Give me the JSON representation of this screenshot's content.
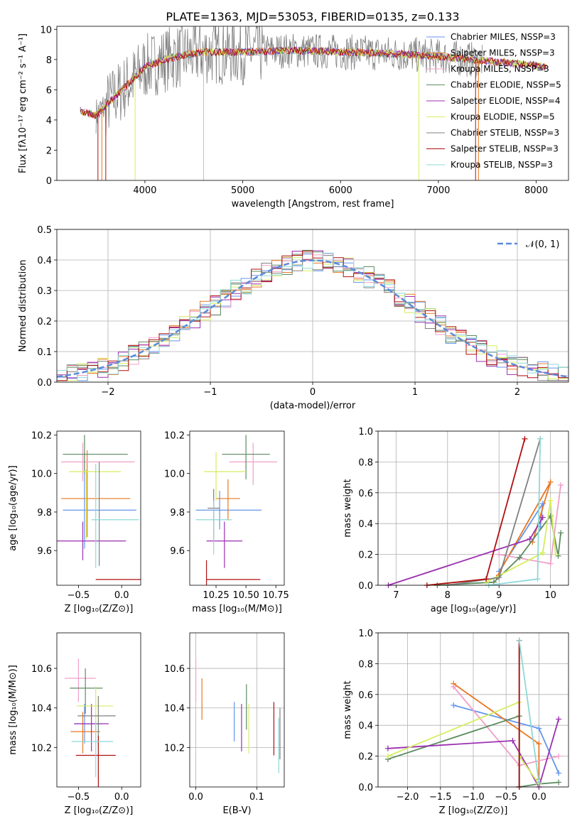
{
  "figure_title": "PLATE=1363, MJD=53053, FIBERID=0135, z=0.133",
  "colors": [
    "#6495ED",
    "#E87722",
    "#F0A0C8",
    "#5E8C61",
    "#9B30B0",
    "#D4EE5E",
    "#808080",
    "#B01010",
    "#8ED8D8"
  ],
  "chart_data": [
    {
      "id": "spectrum",
      "type": "line",
      "xlabel": "wavelength [Angstrom, rest frame]",
      "ylabel": "Flux [fλ10⁻¹⁷ erg cm⁻² s⁻¹ A⁻¹]",
      "xlim": [
        3100,
        8330
      ],
      "ylim": [
        0,
        10.2
      ],
      "xticks": [
        "4000",
        "5000",
        "6000",
        "7000",
        "8000"
      ],
      "yticks": [
        "0",
        "2",
        "4",
        "6",
        "8",
        "10"
      ],
      "legend_position": "right",
      "series": [
        {
          "name": "Chabrier MILES, N_SSP=3"
        },
        {
          "name": "Salpeter MILES, N_SSP=3"
        },
        {
          "name": "Kroupa MILES, N_SSP=3"
        },
        {
          "name": "Chabrier ELODIE, N_SSP=5"
        },
        {
          "name": "Salpeter ELODIE, N_SSP=4"
        },
        {
          "name": "Kroupa ELODIE, N_SSP=5"
        },
        {
          "name": "Chabrier STELIB, N_SSP=3"
        },
        {
          "name": "Salpeter STELIB, N_SSP=3"
        },
        {
          "name": "Kroupa STELIB, N_SSP=3"
        }
      ],
      "continuum": {
        "x": [
          3340,
          3500,
          3700,
          3900,
          4000,
          4200,
          4400,
          4600,
          5000,
          5500,
          6000,
          6500,
          7000,
          7500,
          8000,
          8100
        ],
        "y": [
          4.6,
          4.3,
          5.6,
          6.8,
          7.5,
          8.0,
          8.3,
          8.5,
          8.5,
          8.6,
          8.5,
          8.4,
          8.2,
          7.9,
          7.6,
          7.5
        ]
      }
    },
    {
      "id": "residuals",
      "type": "histogram",
      "xlabel": "(data-model)/error",
      "ylabel": "Normed distribution",
      "xlim": [
        -2.5,
        2.5
      ],
      "ylim": [
        0,
        0.5
      ],
      "xticks": [
        "−2",
        "−1",
        "0",
        "1",
        "2"
      ],
      "yticks": [
        "0.0",
        "0.1",
        "0.2",
        "0.3",
        "0.4",
        "0.5"
      ],
      "grid": true,
      "legend_position": "top-right",
      "reference_curve": {
        "name": "𝒩(0, 1)",
        "mean": 0,
        "sigma": 1
      }
    },
    {
      "id": "age_vs_Z",
      "type": "errorbar",
      "xlabel": "Z [log₁₀(Z/Z⊙)]",
      "ylabel": "age  [log₁₀(age/yr)]",
      "xticks": [
        "−0.5",
        "0.0"
      ],
      "yticks": [
        "9.6",
        "9.8",
        "10.0",
        "10.2"
      ],
      "points": [
        {
          "series": 0,
          "x": -0.43,
          "xerr": [
            0.25,
            0.6
          ],
          "y": 9.81,
          "yerr": [
            0.2,
            0.3
          ]
        },
        {
          "series": 1,
          "x": -0.4,
          "xerr": [
            0.3,
            0.5
          ],
          "y": 9.87,
          "yerr": [
            0.2,
            0.25
          ]
        },
        {
          "series": 2,
          "x": -0.45,
          "xerr": [
            0.25,
            0.6
          ],
          "y": 10.06,
          "yerr": [
            0.1,
            0.1
          ]
        },
        {
          "series": 3,
          "x": -0.43,
          "xerr": [
            0.25,
            0.5
          ],
          "y": 10.1,
          "yerr": [
            0.1,
            0.1
          ]
        },
        {
          "series": 4,
          "x": -0.45,
          "xerr": [
            0.45,
            0.5
          ],
          "y": 9.65,
          "yerr": [
            0.1,
            0.1
          ]
        },
        {
          "series": 5,
          "x": -0.41,
          "xerr": [
            0.2,
            0.4
          ],
          "y": 10.01,
          "yerr": [
            0.35,
            0.01
          ]
        },
        {
          "series": 6,
          "x": -0.26,
          "xerr": [
            0.0,
            0.0
          ],
          "y": 9.82,
          "yerr": [
            0.3,
            0.24
          ]
        },
        {
          "series": 7,
          "x": -0.25,
          "xerr": [
            0.05,
            0.47
          ],
          "y": 9.45,
          "yerr": [
            0.0,
            0.0
          ]
        },
        {
          "series": 8,
          "x": -0.3,
          "xerr": [
            0.05,
            0.5
          ],
          "y": 9.76,
          "yerr": [
            0.25,
            0.29
          ]
        }
      ]
    },
    {
      "id": "age_vs_mass",
      "type": "errorbar",
      "xlabel": "mass [log₁₀(M/M⊙)]",
      "xticks": [
        "10.25",
        "10.50",
        "10.75"
      ],
      "yticks": [
        "9.6",
        "9.8",
        "10.0",
        "10.2"
      ],
      "points": [
        {
          "series": 0,
          "x": 10.28,
          "xerr": [
            0.2,
            0.35
          ],
          "y": 9.81
        },
        {
          "series": 1,
          "x": 10.35,
          "xerr": [
            0.1,
            0.1
          ],
          "y": 9.87
        },
        {
          "series": 2,
          "x": 10.56,
          "xerr": [
            0.2,
            0.2
          ],
          "y": 10.06
        },
        {
          "series": 3,
          "x": 10.5,
          "xerr": [
            0.2,
            0.2
          ],
          "y": 10.1
        },
        {
          "series": 4,
          "x": 10.32,
          "xerr": [
            0.15,
            0.15
          ],
          "y": 9.65
        },
        {
          "series": 5,
          "x": 10.25,
          "xerr": [
            0.1,
            0.25
          ],
          "y": 10.01
        },
        {
          "series": 6,
          "x": 10.23,
          "xerr": [
            0.05,
            0.05
          ],
          "y": 9.82
        },
        {
          "series": 7,
          "x": 10.17,
          "xerr": [
            0.0,
            0.45
          ],
          "y": 9.45
        },
        {
          "series": 8,
          "x": 10.23,
          "xerr": [
            0.15,
            0.15
          ],
          "y": 9.76
        }
      ]
    },
    {
      "id": "mass_weight_vs_age",
      "type": "line",
      "xlabel": "age  [log₁₀(age/yr)]",
      "ylabel": "mass weight",
      "xlim": [
        6.65,
        10.35
      ],
      "ylim": [
        0,
        1.0
      ],
      "xticks": [
        "7",
        "8",
        "9",
        "10"
      ],
      "yticks": [
        "0.0",
        "0.2",
        "0.4",
        "0.6",
        "0.8",
        "1.0"
      ],
      "grid": true,
      "series": [
        {
          "x": [
            9.0,
            9.85,
            9.8
          ],
          "y": [
            0.09,
            0.53,
            0.38
          ]
        },
        {
          "x": [
            8.95,
            10.0,
            9.65
          ],
          "y": [
            0.05,
            0.67,
            0.28
          ]
        },
        {
          "x": [
            9.0,
            10.0,
            10.2
          ],
          "y": [
            0.2,
            0.14,
            0.65
          ]
        },
        {
          "x": [
            7.8,
            8.9,
            9.4,
            10.0,
            10.15,
            10.2
          ],
          "y": [
            0.0,
            0.02,
            0.18,
            0.45,
            0.19,
            0.34
          ]
        },
        {
          "x": [
            6.85,
            9.6,
            9.85
          ],
          "y": [
            0.0,
            0.3,
            0.44
          ]
        },
        {
          "x": [
            8.75,
            9.85,
            10.0,
            10.1
          ],
          "y": [
            0.02,
            0.21,
            0.55,
            0.2
          ]
        },
        {
          "x": [
            8.0,
            9.0,
            9.8
          ],
          "y": [
            0.0,
            0.05,
            0.95
          ]
        },
        {
          "x": [
            7.6,
            8.75,
            9.5
          ],
          "y": [
            0.0,
            0.04,
            0.95
          ]
        },
        {
          "x": [
            8.8,
            9.75,
            9.8
          ],
          "y": [
            0.0,
            0.04,
            0.95
          ]
        }
      ]
    },
    {
      "id": "mass_vs_Z",
      "type": "errorbar",
      "xlabel": "Z [log₁₀(Z/Z⊙)]",
      "ylabel": "mass [log₁₀(M/M⊙)]",
      "xticks": [
        "−0.5",
        "0.0"
      ],
      "yticks": [
        "10.2",
        "10.4",
        "10.6"
      ],
      "points": [
        {
          "series": 0,
          "x": -0.43,
          "y": 10.32
        },
        {
          "series": 1,
          "x": -0.45,
          "y": 10.28
        },
        {
          "series": 2,
          "x": -0.5,
          "y": 10.55
        },
        {
          "series": 3,
          "x": -0.42,
          "y": 10.5
        },
        {
          "series": 4,
          "x": -0.35,
          "y": 10.32
        },
        {
          "series": 5,
          "x": -0.3,
          "y": 10.41
        },
        {
          "series": 6,
          "x": -0.27,
          "y": 10.36
        },
        {
          "series": 7,
          "x": -0.27,
          "y": 10.16
        },
        {
          "series": 8,
          "x": -0.3,
          "y": 10.23
        }
      ]
    },
    {
      "id": "mass_vs_ebv",
      "type": "errorbar",
      "xlabel": "E(B-V)",
      "xticks": [
        "0.0",
        "0.1"
      ],
      "yticks": [
        "10.2",
        "10.4",
        "10.6"
      ],
      "points": [
        {
          "series": 0,
          "x": 0.063,
          "y": 10.33
        },
        {
          "series": 1,
          "x": 0.01,
          "y": 10.45
        },
        {
          "series": 2,
          "x": 0.0,
          "y": 10.55
        },
        {
          "series": 3,
          "x": 0.083,
          "y": 10.42
        },
        {
          "series": 4,
          "x": 0.075,
          "y": 10.32
        },
        {
          "series": 5,
          "x": 0.087,
          "y": 10.32
        },
        {
          "series": 6,
          "x": 0.138,
          "y": 10.3
        },
        {
          "series": 7,
          "x": 0.128,
          "y": 10.33
        },
        {
          "series": 8,
          "x": 0.136,
          "y": 10.25
        }
      ]
    },
    {
      "id": "mass_weight_vs_Z",
      "type": "line",
      "xlabel": "Z [log₁₀(Z/Z⊙)]",
      "ylabel": "mass weight",
      "xlim": [
        -2.45,
        0.45
      ],
      "ylim": [
        0,
        1.0
      ],
      "xticks": [
        "−2.0",
        "−1.5",
        "−1.0",
        "−0.5",
        "0.0"
      ],
      "yticks": [
        "0.0",
        "0.2",
        "0.4",
        "0.6",
        "0.8",
        "1.0"
      ],
      "grid": true,
      "series": [
        {
          "x": [
            -1.3,
            0.0,
            0.3
          ],
          "y": [
            0.53,
            0.38,
            0.09
          ]
        },
        {
          "x": [
            -1.3,
            0.0,
            0.0
          ],
          "y": [
            0.67,
            0.28,
            0.05
          ]
        },
        {
          "x": [
            -1.3,
            -0.3,
            0.3
          ],
          "y": [
            0.65,
            0.14,
            0.2
          ]
        },
        {
          "x": [
            -2.3,
            -0.3,
            -0.3,
            0.0,
            0.3
          ],
          "y": [
            0.18,
            0.46,
            0.0,
            0.02,
            0.03
          ]
        },
        {
          "x": [
            -2.3,
            -0.4,
            0.0,
            0.3
          ],
          "y": [
            0.25,
            0.3,
            0.0,
            0.44
          ]
        },
        {
          "x": [
            -2.3,
            -0.3,
            -0.3,
            0.0
          ],
          "y": [
            0.2,
            0.55,
            0.2,
            0.02
          ]
        },
        {
          "x": [
            -0.3,
            -0.3
          ],
          "y": [
            0.95,
            0.0
          ]
        },
        {
          "x": [
            -0.3,
            -0.3
          ],
          "y": [
            0.95,
            0.0
          ]
        },
        {
          "x": [
            -0.3,
            0.0
          ],
          "y": [
            0.95,
            0.03
          ]
        }
      ]
    }
  ]
}
